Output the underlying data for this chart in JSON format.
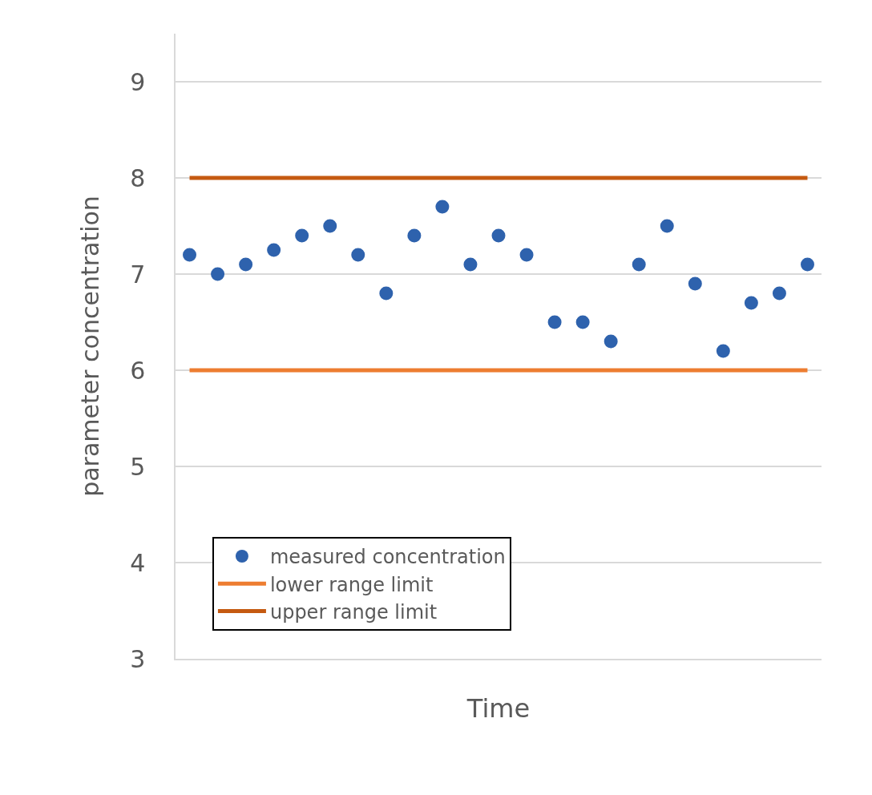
{
  "chart_data": {
    "type": "scatter",
    "xlabel": "Time",
    "ylabel": "parameter concentration",
    "categories": [
      null,
      null,
      null,
      null,
      null,
      null,
      null,
      null,
      null,
      null,
      null,
      null,
      null,
      null,
      null,
      null,
      null,
      null,
      null,
      null,
      null,
      null,
      null
    ],
    "series": [
      {
        "name": "measured concentration",
        "marker": "circle",
        "color": "#2e62ad",
        "values": [
          7.2,
          7.0,
          7.1,
          7.25,
          7.4,
          7.5,
          7.2,
          6.8,
          7.4,
          7.7,
          7.1,
          7.4,
          7.2,
          6.5,
          6.5,
          6.3,
          7.1,
          7.5,
          6.9,
          6.2,
          6.7,
          6.8,
          7.1
        ]
      },
      {
        "name": "lower range limit",
        "type": "line",
        "marker": "none",
        "color": "#ed7d31",
        "values": [
          6,
          6,
          6,
          6,
          6,
          6,
          6,
          6,
          6,
          6,
          6,
          6,
          6,
          6,
          6,
          6,
          6,
          6,
          6,
          6,
          6,
          6,
          6
        ]
      },
      {
        "name": "upper range limit",
        "type": "line",
        "marker": "none",
        "color": "#c55a11",
        "values": [
          8,
          8,
          8,
          8,
          8,
          8,
          8,
          8,
          8,
          8,
          8,
          8,
          8,
          8,
          8,
          8,
          8,
          8,
          8,
          8,
          8,
          8,
          8
        ]
      }
    ],
    "ylim": [
      3,
      9.5
    ],
    "yticks": [
      3,
      4,
      5,
      6,
      7,
      8,
      9
    ],
    "grid": "y",
    "legend": "bottom left",
    "tick_labels": "y"
  }
}
